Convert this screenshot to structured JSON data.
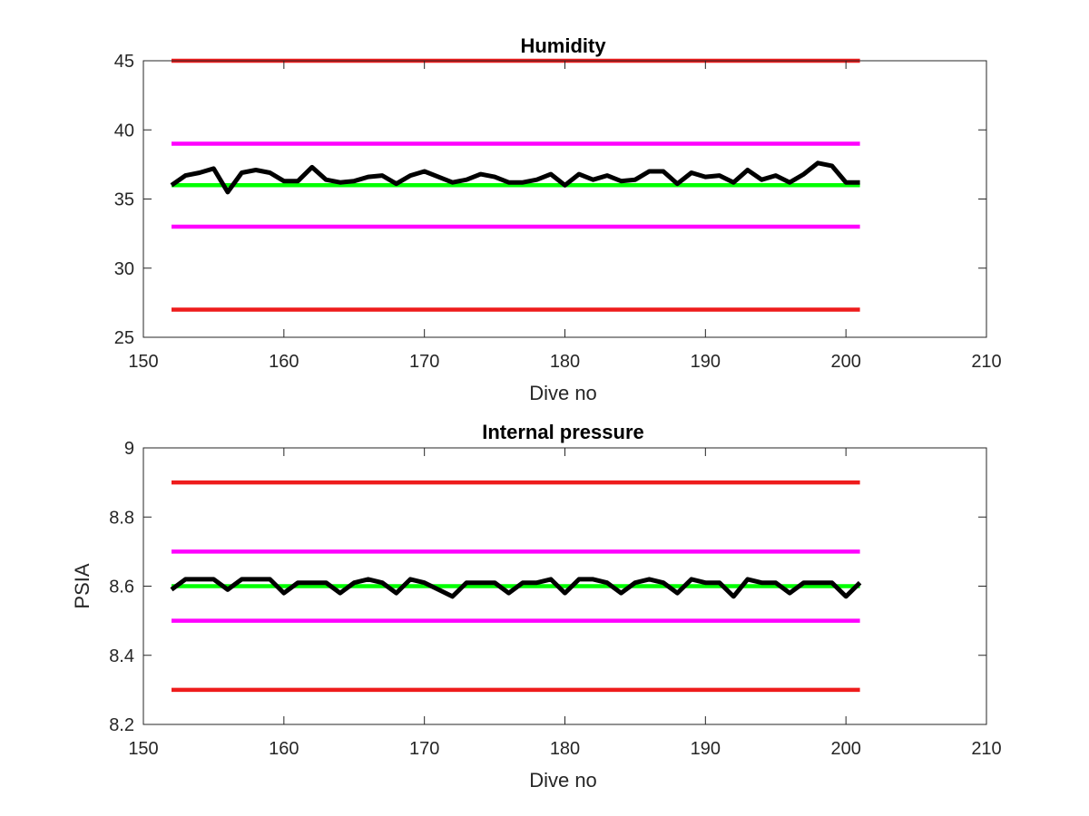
{
  "chart_data": [
    {
      "type": "line",
      "title": "Humidity",
      "xlabel": "Dive no",
      "ylabel": "",
      "xlim": [
        150,
        210
      ],
      "ylim": [
        25,
        45
      ],
      "xticks": [
        "150",
        "160",
        "170",
        "180",
        "190",
        "200",
        "210"
      ],
      "yticks": [
        "25",
        "30",
        "35",
        "40",
        "45"
      ],
      "grid": false,
      "series": [
        {
          "color": "#ee1c1c",
          "x": [
            152,
            201
          ],
          "values": [
            45,
            45
          ]
        },
        {
          "color": "#ff00ff",
          "x": [
            152,
            201
          ],
          "values": [
            39,
            39
          ]
        },
        {
          "color": "#00ff00",
          "x": [
            152,
            201
          ],
          "values": [
            36,
            36
          ]
        },
        {
          "color": "#ff00ff",
          "x": [
            152,
            201
          ],
          "values": [
            33,
            33
          ]
        },
        {
          "color": "#ee1c1c",
          "x": [
            152,
            201
          ],
          "values": [
            27,
            27
          ]
        },
        {
          "color": "#000000",
          "x": [
            152,
            153,
            154,
            155,
            156,
            157,
            158,
            159,
            160,
            161,
            162,
            163,
            164,
            165,
            166,
            167,
            168,
            169,
            170,
            171,
            172,
            173,
            174,
            175,
            176,
            177,
            178,
            179,
            180,
            181,
            182,
            183,
            184,
            185,
            186,
            187,
            188,
            189,
            190,
            191,
            192,
            193,
            194,
            195,
            196,
            197,
            198,
            199,
            200,
            201
          ],
          "values": [
            36.0,
            36.7,
            36.9,
            37.2,
            35.5,
            36.9,
            37.1,
            36.9,
            36.3,
            36.3,
            37.3,
            36.4,
            36.2,
            36.3,
            36.6,
            36.7,
            36.1,
            36.7,
            37.0,
            36.6,
            36.2,
            36.4,
            36.8,
            36.6,
            36.2,
            36.2,
            36.4,
            36.8,
            36.0,
            36.8,
            36.4,
            36.7,
            36.3,
            36.4,
            37.0,
            37.0,
            36.1,
            36.9,
            36.6,
            36.7,
            36.2,
            37.1,
            36.4,
            36.7,
            36.2,
            36.8,
            37.6,
            37.4,
            36.2,
            36.2
          ]
        }
      ]
    },
    {
      "type": "line",
      "title": "Internal pressure",
      "xlabel": "Dive no",
      "ylabel": "PSIA",
      "xlim": [
        150,
        210
      ],
      "ylim": [
        8.2,
        9.0
      ],
      "xticks": [
        "150",
        "160",
        "170",
        "180",
        "190",
        "200",
        "210"
      ],
      "yticks": [
        "8.2",
        "8.4",
        "8.6",
        "8.8",
        "9"
      ],
      "grid": false,
      "series": [
        {
          "color": "#ee1c1c",
          "x": [
            152,
            201
          ],
          "values": [
            8.9,
            8.9
          ]
        },
        {
          "color": "#ff00ff",
          "x": [
            152,
            201
          ],
          "values": [
            8.7,
            8.7
          ]
        },
        {
          "color": "#00ff00",
          "x": [
            152,
            201
          ],
          "values": [
            8.6,
            8.6
          ]
        },
        {
          "color": "#ff00ff",
          "x": [
            152,
            201
          ],
          "values": [
            8.5,
            8.5
          ]
        },
        {
          "color": "#ee1c1c",
          "x": [
            152,
            201
          ],
          "values": [
            8.3,
            8.3
          ]
        },
        {
          "color": "#000000",
          "x": [
            152,
            153,
            154,
            155,
            156,
            157,
            158,
            159,
            160,
            161,
            162,
            163,
            164,
            165,
            166,
            167,
            168,
            169,
            170,
            171,
            172,
            173,
            174,
            175,
            176,
            177,
            178,
            179,
            180,
            181,
            182,
            183,
            184,
            185,
            186,
            187,
            188,
            189,
            190,
            191,
            192,
            193,
            194,
            195,
            196,
            197,
            198,
            199,
            200,
            201
          ],
          "values": [
            8.59,
            8.62,
            8.62,
            8.62,
            8.59,
            8.62,
            8.62,
            8.62,
            8.58,
            8.61,
            8.61,
            8.61,
            8.58,
            8.61,
            8.62,
            8.61,
            8.58,
            8.62,
            8.61,
            8.59,
            8.57,
            8.61,
            8.61,
            8.61,
            8.58,
            8.61,
            8.61,
            8.62,
            8.58,
            8.62,
            8.62,
            8.61,
            8.58,
            8.61,
            8.62,
            8.61,
            8.58,
            8.62,
            8.61,
            8.61,
            8.57,
            8.62,
            8.61,
            8.61,
            8.58,
            8.61,
            8.61,
            8.61,
            8.57,
            8.61
          ]
        }
      ]
    }
  ]
}
